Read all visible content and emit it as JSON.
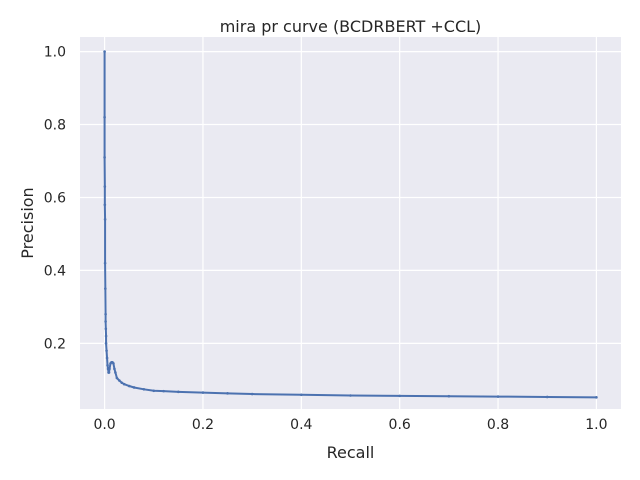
{
  "chart_data": {
    "type": "line",
    "title": "mira pr curve (BCDRBERT +CCL)",
    "xlabel": "Recall",
    "ylabel": "Precision",
    "xlim": [
      -0.05,
      1.05
    ],
    "ylim": [
      0.02,
      1.04
    ],
    "xticks": [
      "0.0",
      "0.2",
      "0.4",
      "0.6",
      "0.8",
      "1.0"
    ],
    "yticks": [
      "0.2",
      "0.4",
      "0.6",
      "0.8",
      "1.0"
    ],
    "grid": true,
    "background": "#eaeaf2",
    "grid_color": "#ffffff",
    "series": [
      {
        "color": "#4c72b0",
        "x": [
          0.0,
          0.0,
          0.0,
          0.0005,
          0.0005,
          0.001,
          0.001,
          0.0015,
          0.002,
          0.002,
          0.0025,
          0.003,
          0.003,
          0.004,
          0.005,
          0.006,
          0.007,
          0.008,
          0.009,
          0.01,
          0.012,
          0.014,
          0.016,
          0.018,
          0.02,
          0.022,
          0.025,
          0.03,
          0.035,
          0.04,
          0.05,
          0.06,
          0.08,
          0.1,
          0.12,
          0.15,
          0.2,
          0.25,
          0.3,
          0.4,
          0.5,
          0.6,
          0.7,
          0.8,
          0.9,
          1.0
        ],
        "y": [
          1.0,
          0.82,
          0.71,
          0.63,
          0.58,
          0.54,
          0.42,
          0.35,
          0.28,
          0.26,
          0.24,
          0.22,
          0.2,
          0.18,
          0.16,
          0.14,
          0.13,
          0.12,
          0.12,
          0.13,
          0.145,
          0.148,
          0.148,
          0.145,
          0.13,
          0.12,
          0.105,
          0.098,
          0.092,
          0.088,
          0.083,
          0.079,
          0.074,
          0.07,
          0.069,
          0.067,
          0.065,
          0.063,
          0.061,
          0.059,
          0.057,
          0.056,
          0.055,
          0.054,
          0.053,
          0.052
        ]
      }
    ]
  }
}
